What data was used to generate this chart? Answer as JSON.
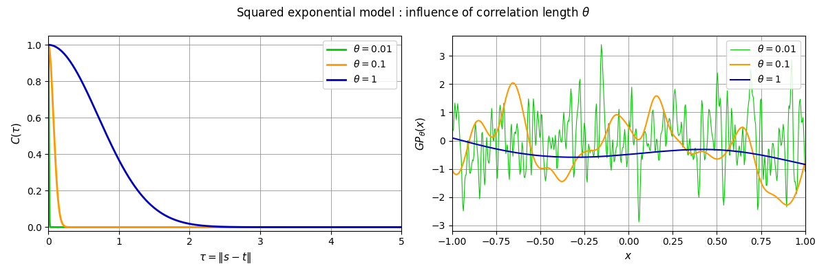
{
  "title": "Squared exponential model : influence of correlation length $\\theta$",
  "theta_values": [
    0.01,
    0.1,
    1.0
  ],
  "colors": [
    "#00cc00",
    "#ff9900",
    "#0000bb"
  ],
  "legend_labels": [
    "$\\theta = 0.01$",
    "$\\theta = 0.1$",
    "$\\theta = 1$"
  ],
  "left": {
    "xlabel": "$\\tau = \\|s - t\\|$",
    "ylabel": "$C(\\tau)$",
    "xlim": [
      0,
      5
    ],
    "ylim": [
      -0.02,
      1.05
    ],
    "tau_n": 2000
  },
  "right": {
    "xlabel": "$x$",
    "ylabel": "$GP_\\theta(x)$",
    "xlim": [
      -1.0,
      1.0
    ],
    "n_points": 500,
    "seeds": [
      0,
      0,
      0
    ]
  },
  "figsize": [
    12.0,
    4.0
  ],
  "dpi": 100
}
